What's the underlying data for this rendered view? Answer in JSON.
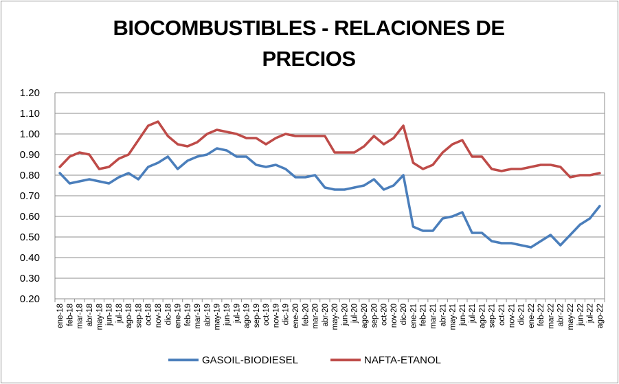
{
  "chart_data": {
    "type": "line",
    "title_lines": [
      "BIOCOMBUSTIBLES - RELACIONES DE",
      "PRECIOS"
    ],
    "xlabel": "",
    "ylabel": "",
    "ylim": [
      0.2,
      1.2
    ],
    "yticks": [
      "1.20",
      "1.10",
      "1.00",
      "0.90",
      "0.80",
      "0.70",
      "0.60",
      "0.50",
      "0.40",
      "0.30",
      "0.20"
    ],
    "grid": true,
    "legend_position": "bottom",
    "categories": [
      "ene-18",
      "feb-18",
      "mar-18",
      "abr-18",
      "may-18",
      "jun-18",
      "jul-18",
      "ago-18",
      "sep-18",
      "oct-18",
      "nov-18",
      "dic-18",
      "ene-19",
      "feb-19",
      "mar-19",
      "abr-19",
      "may-19",
      "jun-19",
      "jul-19",
      "ago-19",
      "sep-19",
      "oct-19",
      "nov-19",
      "dic-19",
      "ene-20",
      "feb-20",
      "mar-20",
      "abr-20",
      "may-20",
      "jun-20",
      "jul-20",
      "ago-20",
      "sep-20",
      "oct-20",
      "nov-20",
      "dic-20",
      "ene-21",
      "feb-21",
      "mar-21",
      "abr-21",
      "may-21",
      "jun-21",
      "jul-21",
      "ago-21",
      "sep-21",
      "oct-21",
      "nov-21",
      "dic-21",
      "ene-22",
      "feb-22",
      "mar-22",
      "abr-22",
      "may-22",
      "jun-22",
      "jul-22",
      "ago-22"
    ],
    "series": [
      {
        "name": "GASOIL-BIODIESEL",
        "color": "#4a7ebb",
        "values": [
          0.81,
          0.76,
          0.77,
          0.78,
          0.77,
          0.76,
          0.79,
          0.81,
          0.78,
          0.84,
          0.86,
          0.89,
          0.83,
          0.87,
          0.89,
          0.9,
          0.93,
          0.92,
          0.89,
          0.89,
          0.85,
          0.84,
          0.85,
          0.83,
          0.79,
          0.79,
          0.8,
          0.74,
          0.73,
          0.73,
          0.74,
          0.75,
          0.78,
          0.73,
          0.75,
          0.8,
          0.55,
          0.53,
          0.53,
          0.59,
          0.6,
          0.62,
          0.52,
          0.52,
          0.48,
          0.47,
          0.47,
          0.46,
          0.45,
          0.48,
          0.51,
          0.46,
          0.51,
          0.56,
          0.59,
          0.65
        ]
      },
      {
        "name": "NAFTA-ETANOL",
        "color": "#be4b48",
        "values": [
          0.84,
          0.89,
          0.91,
          0.9,
          0.83,
          0.84,
          0.88,
          0.9,
          0.97,
          1.04,
          1.06,
          0.99,
          0.95,
          0.94,
          0.96,
          1.0,
          1.02,
          1.01,
          1.0,
          0.98,
          0.98,
          0.95,
          0.98,
          1.0,
          0.99,
          0.99,
          0.99,
          0.99,
          0.91,
          0.91,
          0.91,
          0.94,
          0.99,
          0.95,
          0.98,
          1.04,
          0.86,
          0.83,
          0.85,
          0.91,
          0.95,
          0.97,
          0.89,
          0.89,
          0.83,
          0.82,
          0.83,
          0.83,
          0.84,
          0.85,
          0.85,
          0.84,
          0.79,
          0.8,
          0.8,
          0.81
        ]
      }
    ]
  }
}
